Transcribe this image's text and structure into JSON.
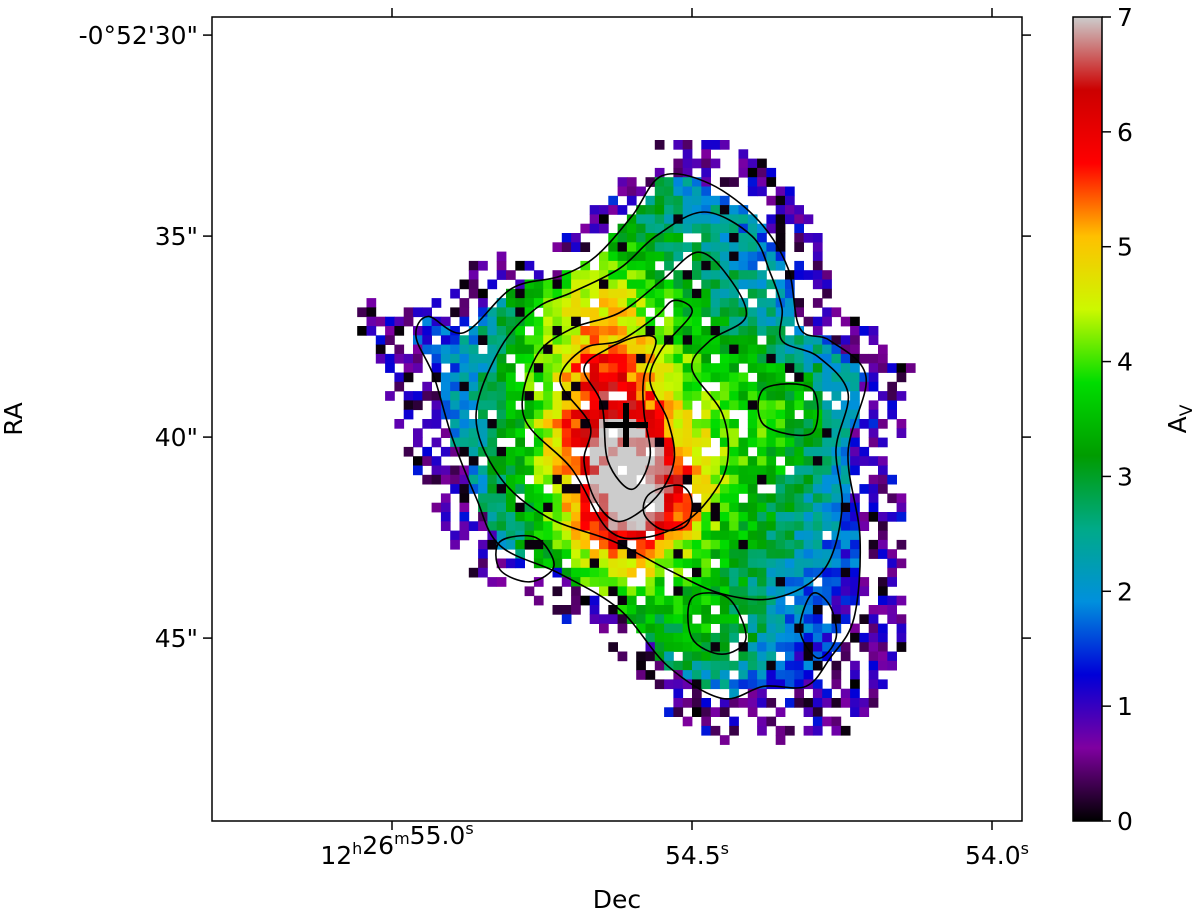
{
  "chart_data": {
    "type": "heatmap",
    "xlabel": "Dec",
    "ylabel": "RA",
    "x_ticks": [
      {
        "ra_sec": 55.0,
        "h": "12",
        "m": "26",
        "s": "55.0",
        "unit_s": "s",
        "full": true
      },
      {
        "ra_sec": 54.5,
        "s": "54.5",
        "unit_s": "s",
        "full": false
      },
      {
        "ra_sec": 54.0,
        "s": "54.0",
        "unit_s": "s",
        "full": false
      }
    ],
    "x_range_sec": [
      55.3,
      53.95
    ],
    "y_ticks": [
      {
        "dec_arcsec": 30,
        "label": "-0°52'30\""
      },
      {
        "dec_arcsec": 35,
        "label": "35\""
      },
      {
        "dec_arcsec": 40,
        "label": "40\""
      },
      {
        "dec_arcsec": 45,
        "label": "45\""
      }
    ],
    "y_range_arcsec": [
      29.55,
      49.55
    ],
    "colorbar": {
      "label_main": "A",
      "label_sub": "V",
      "vmin": 0,
      "vmax": 7,
      "ticks": [
        0,
        1,
        2,
        3,
        4,
        5,
        6,
        7
      ],
      "colormap": "nipy_spectral",
      "stops": [
        "#000000",
        "#7f00a0",
        "#0000d8",
        "#0090dd",
        "#00aa88",
        "#009c00",
        "#00dd00",
        "#ccf800",
        "#ffc000",
        "#ff0000",
        "#cc0000",
        "#cccccc"
      ]
    },
    "nucleus_marker": {
      "ra_sec": 54.61,
      "dec_arcsec": 39.7,
      "symbol": "+"
    },
    "blobs": [
      {
        "ra_sec": 54.6,
        "dec_arcsec": 39.7,
        "sx_sec": 0.22,
        "sy_arcsec": 5.2,
        "amp": 3.2,
        "theta_deg": -35
      },
      {
        "ra_sec": 54.67,
        "dec_arcsec": 38.4,
        "sx_sec": 0.09,
        "sy_arcsec": 3.2,
        "amp": 1.5,
        "theta_deg": -30
      },
      {
        "ra_sec": 54.63,
        "dec_arcsec": 40.7,
        "sx_sec": 0.06,
        "sy_arcsec": 1.8,
        "amp": 1.7,
        "theta_deg": 0
      },
      {
        "ra_sec": 54.57,
        "dec_arcsec": 41.5,
        "sx_sec": 0.06,
        "sy_arcsec": 1.0,
        "amp": 1.9,
        "theta_deg": 0
      },
      {
        "ra_sec": 54.33,
        "dec_arcsec": 39.3,
        "sx_sec": 0.09,
        "sy_arcsec": 1.2,
        "amp": 1.2,
        "theta_deg": 0
      },
      {
        "ra_sec": 54.44,
        "dec_arcsec": 42.0,
        "sx_sec": 0.15,
        "sy_arcsec": 1.8,
        "amp": 0.7,
        "theta_deg": 0
      },
      {
        "ra_sec": 54.46,
        "dec_arcsec": 45.0,
        "sx_sec": 0.06,
        "sy_arcsec": 0.8,
        "amp": 1.0,
        "theta_deg": 0
      }
    ],
    "base_level": 0.6,
    "contours": [
      {
        "level": 1,
        "points": [
          [
            54.94,
            37.0
          ],
          [
            54.88,
            37.4
          ],
          [
            54.8,
            36.3
          ],
          [
            54.72,
            36.0
          ],
          [
            54.66,
            35.5
          ],
          [
            54.6,
            34.5
          ],
          [
            54.55,
            33.5
          ],
          [
            54.47,
            33.7
          ],
          [
            54.39,
            34.6
          ],
          [
            54.34,
            35.8
          ],
          [
            54.32,
            37.3
          ],
          [
            54.27,
            37.6
          ],
          [
            54.21,
            38.5
          ],
          [
            54.24,
            40.4
          ],
          [
            54.22,
            42.5
          ],
          [
            54.23,
            44.5
          ],
          [
            54.27,
            45.5
          ],
          [
            54.31,
            46.2
          ],
          [
            54.38,
            46.2
          ],
          [
            54.45,
            46.5
          ],
          [
            54.54,
            45.7
          ],
          [
            54.62,
            44.3
          ],
          [
            54.72,
            43.4
          ],
          [
            54.82,
            42.7
          ],
          [
            54.86,
            41.5
          ],
          [
            54.9,
            40.0
          ],
          [
            54.93,
            38.5
          ],
          [
            54.96,
            37.5
          ]
        ]
      },
      {
        "level": 2,
        "points": [
          [
            54.74,
            42.0
          ],
          [
            54.82,
            41.0
          ],
          [
            54.86,
            39.5
          ],
          [
            54.82,
            37.8
          ],
          [
            54.76,
            36.8
          ],
          [
            54.7,
            36.4
          ],
          [
            54.62,
            35.8
          ],
          [
            54.56,
            35.0
          ],
          [
            54.48,
            34.4
          ],
          [
            54.4,
            35.0
          ],
          [
            54.37,
            35.9
          ],
          [
            54.35,
            36.8
          ],
          [
            54.35,
            37.6
          ],
          [
            54.29,
            38.0
          ],
          [
            54.24,
            38.9
          ],
          [
            54.26,
            40.3
          ],
          [
            54.25,
            41.8
          ],
          [
            54.28,
            43.3
          ],
          [
            54.36,
            44.0
          ],
          [
            54.45,
            43.9
          ],
          [
            54.54,
            43.3
          ],
          [
            54.63,
            42.6
          ]
        ]
      },
      {
        "level": 3,
        "points": [
          [
            54.7,
            40.8
          ],
          [
            54.78,
            39.5
          ],
          [
            54.76,
            38.0
          ],
          [
            54.7,
            37.3
          ],
          [
            54.62,
            36.9
          ],
          [
            54.55,
            36.1
          ],
          [
            54.49,
            35.4
          ],
          [
            54.44,
            36.0
          ],
          [
            54.41,
            37.0
          ],
          [
            54.47,
            37.6
          ],
          [
            54.5,
            38.3
          ],
          [
            54.45,
            39.4
          ],
          [
            54.44,
            40.5
          ],
          [
            54.46,
            41.3
          ],
          [
            54.51,
            42.1
          ],
          [
            54.58,
            42.5
          ],
          [
            54.64,
            42.3
          ]
        ]
      },
      {
        "level": 4,
        "points": [
          [
            54.67,
            39.7
          ],
          [
            54.72,
            38.6
          ],
          [
            54.68,
            37.8
          ],
          [
            54.62,
            37.6
          ],
          [
            54.56,
            37.0
          ],
          [
            54.53,
            36.6
          ],
          [
            54.5,
            36.9
          ],
          [
            54.55,
            37.8
          ],
          [
            54.57,
            38.6
          ],
          [
            54.54,
            39.6
          ],
          [
            54.53,
            40.6
          ],
          [
            54.56,
            41.5
          ],
          [
            54.62,
            42.1
          ],
          [
            54.66,
            41.6
          ],
          [
            54.68,
            40.6
          ]
        ]
      },
      {
        "level": 5,
        "points": [
          [
            54.65,
            39.2
          ],
          [
            54.68,
            38.3
          ],
          [
            54.64,
            37.8
          ],
          [
            54.59,
            37.5
          ],
          [
            54.56,
            37.6
          ],
          [
            54.58,
            38.5
          ],
          [
            54.58,
            39.4
          ],
          [
            54.57,
            40.5
          ],
          [
            54.6,
            41.3
          ],
          [
            54.64,
            40.6
          ]
        ]
      },
      {
        "level": 5,
        "points": [
          [
            54.52,
            41.2
          ],
          [
            54.57,
            41.4
          ],
          [
            54.58,
            41.9
          ],
          [
            54.55,
            42.3
          ],
          [
            54.51,
            42.2
          ],
          [
            54.5,
            41.6
          ]
        ]
      },
      {
        "level": 3,
        "points": [
          [
            54.38,
            38.8
          ],
          [
            54.3,
            38.8
          ],
          [
            54.3,
            39.9
          ],
          [
            54.38,
            39.7
          ]
        ]
      },
      {
        "level": 3,
        "points": [
          [
            54.5,
            44.0
          ],
          [
            54.44,
            44.0
          ],
          [
            54.41,
            45.0
          ],
          [
            54.45,
            45.4
          ],
          [
            54.5,
            45.0
          ]
        ]
      },
      {
        "level": 2,
        "points": [
          [
            54.82,
            42.6
          ],
          [
            54.76,
            42.5
          ],
          [
            54.73,
            43.2
          ],
          [
            54.77,
            43.6
          ],
          [
            54.82,
            43.3
          ]
        ]
      },
      {
        "level": 1,
        "points": [
          [
            54.3,
            43.9
          ],
          [
            54.27,
            44.2
          ],
          [
            54.26,
            45.0
          ],
          [
            54.29,
            45.5
          ],
          [
            54.32,
            44.8
          ]
        ]
      }
    ]
  }
}
